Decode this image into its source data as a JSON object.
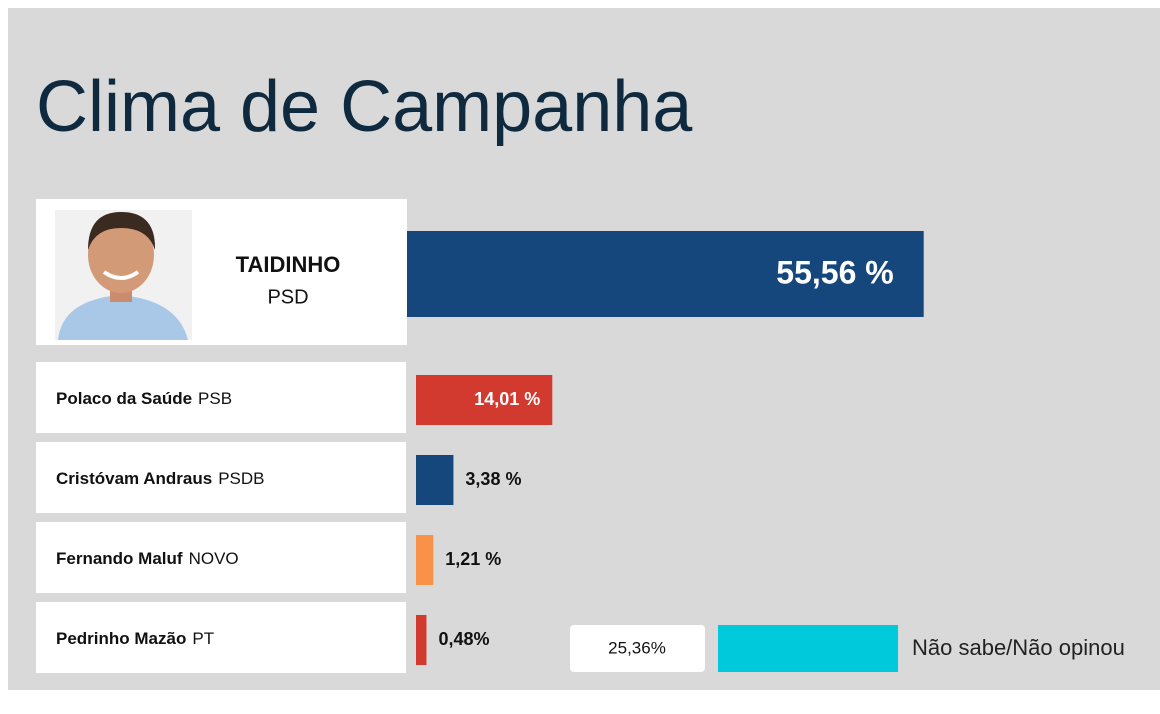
{
  "chart_data": {
    "type": "bar",
    "title": "Clima de Campanha",
    "categories": [
      "TAIDINHO",
      "Polaco da Saúde",
      "Cristóvam Andraus",
      "Fernando Maluf",
      "Pedrinho Mazão"
    ],
    "parties": [
      "PSD",
      "PSB",
      "PSDB",
      "NOVO",
      "PT"
    ],
    "values": [
      55.56,
      14.01,
      3.38,
      1.21,
      0.48
    ],
    "value_labels": [
      "55,56 %",
      "14,01 %",
      "3,38 %",
      "1,21 %",
      "0,48%"
    ],
    "colors": [
      "#15477c",
      "#d23a2f",
      "#15477c",
      "#fa9148",
      "#d23a2f"
    ],
    "undecided": {
      "label": "Não sabe/Não opinou",
      "value": 25.36,
      "value_label": "25,36%",
      "color": "#00c9db"
    }
  }
}
